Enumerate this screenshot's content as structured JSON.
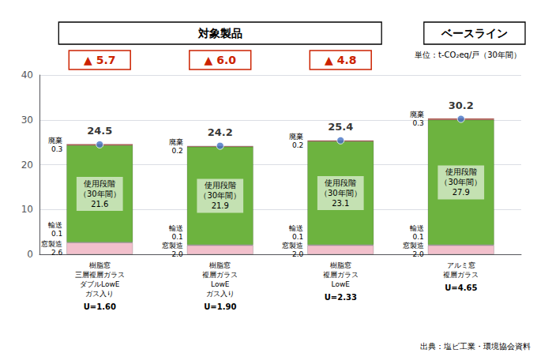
{
  "chart_data": {
    "type": "bar",
    "stacked": true,
    "data_labels": true,
    "grid": true,
    "categories": [
      "樹脂窓\n三層複層ガラス\nダブルLowE\nガス入り",
      "樹脂窓\n複層ガラス\nLowE\nガス入り",
      "樹脂窓\n複層ガラス\nLowE",
      "アルミ窓\n複層ガラス"
    ],
    "category_sublabels": [
      "U=1.60",
      "U=1.90",
      "U=2.33",
      "U=4.65"
    ],
    "series": [
      {
        "name": "窓製造",
        "color": "#f2c0cc",
        "values": [
          2.6,
          2.0,
          2.0,
          2.0
        ],
        "value_labels": [
          "2.6",
          "2.0",
          "2.0",
          "2.0"
        ]
      },
      {
        "name": "輸送",
        "color": "#f2c0cc",
        "values": [
          0.1,
          0.1,
          0.1,
          0.1
        ]
      },
      {
        "name": "使用段階\n（30年間）",
        "color": "#6db33f",
        "values": [
          21.6,
          21.9,
          23.1,
          27.9
        ]
      },
      {
        "name": "廃棄",
        "color": "#c0392b",
        "values": [
          0.3,
          0.2,
          0.2,
          0.3
        ]
      }
    ],
    "totals": {
      "values": [
        24.5,
        24.2,
        25.4,
        30.2
      ],
      "color": "#4472c4",
      "marker": "circle"
    },
    "annotations": [
      {
        "text": "▲ 5.7",
        "category": 0,
        "color": "#cc2200"
      },
      {
        "text": "▲ 6.0",
        "category": 1,
        "color": "#cc2200"
      },
      {
        "text": "▲ 4.8",
        "category": 2,
        "color": "#cc2200"
      }
    ],
    "group_labels": [
      {
        "text": "対象製品",
        "categories": [
          0,
          1,
          2
        ]
      },
      {
        "text": "ベースライン",
        "categories": [
          3
        ]
      }
    ],
    "unit_label": "単位：t-CO₂eq/戸（30年間）",
    "source_label": "出典：塩ビ工業・環境協会資料",
    "ylim": [
      0,
      40
    ],
    "yticks": [
      0,
      10,
      20,
      30,
      40
    ]
  }
}
